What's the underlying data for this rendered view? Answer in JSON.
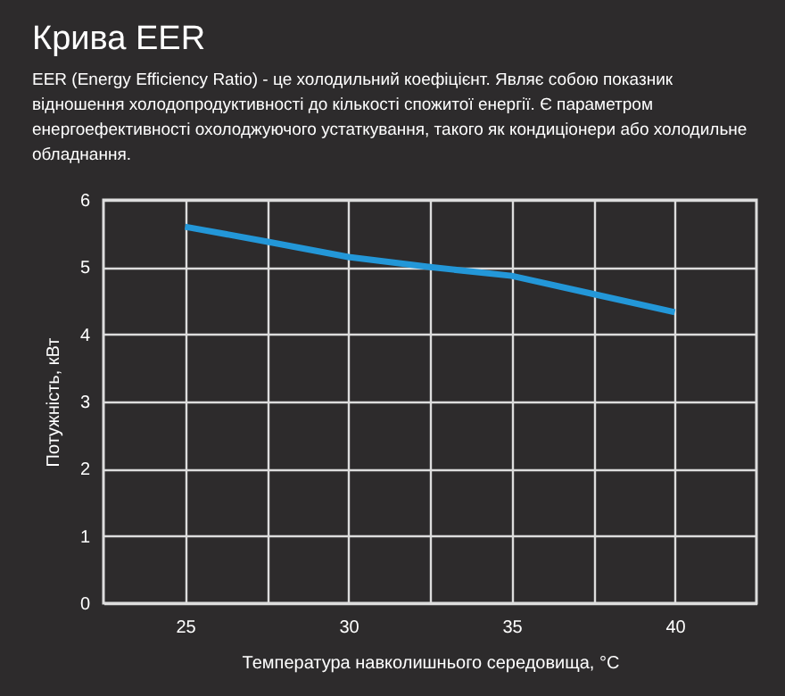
{
  "chart_data": {
    "type": "line",
    "title": "Крива EER",
    "subtitle": "EER (Energy Efficiency Ratio) - це холодильний коефіцієнт. Являє собою показник відношення холодопродуктивності до кількості спожитої енергії. Є параметром енергоефективності охолоджуючого устаткування, такого як кондиціонери або холодильне обладнання.",
    "xlabel": "Температура навколишнього середовища, °C",
    "ylabel": "Потужність, кВт",
    "x": [
      25,
      27.5,
      30,
      32.5,
      35,
      37.5,
      40
    ],
    "series": [
      {
        "color": "#2397d8",
        "values": [
          5.6,
          5.38,
          5.15,
          5.0,
          4.87,
          4.6,
          4.33
        ]
      }
    ],
    "xlim": [
      22.5,
      42.5
    ],
    "xticks": [
      25,
      {
        "value": 27.5,
        "label": null
      },
      30,
      {
        "value": 32.5,
        "label": null
      },
      35,
      {
        "value": 37.5,
        "label": null
      },
      40
    ],
    "ylim": [
      0,
      6
    ],
    "yticks": [
      0,
      1,
      2,
      3,
      4,
      5,
      6
    ],
    "grid": true,
    "marker": "none",
    "line_style": "solid"
  }
}
